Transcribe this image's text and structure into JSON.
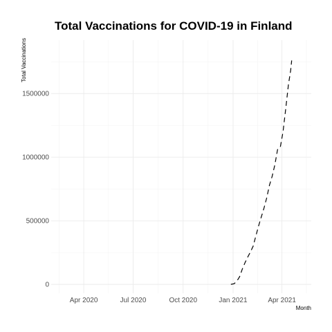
{
  "chart_data": {
    "type": "line",
    "title": "Total Vaccinations for COVID-19 in Finland",
    "xlabel": "Month",
    "ylabel": "Total Vaccinations",
    "xlim": [
      "2020-02-01",
      "2021-05-25"
    ],
    "ylim": [
      -70000,
      1920000
    ],
    "x_ticks": [
      {
        "date": "2020-04-01",
        "label": "Apr 2020"
      },
      {
        "date": "2020-07-01",
        "label": "Jul 2020"
      },
      {
        "date": "2020-10-01",
        "label": "Oct 2020"
      },
      {
        "date": "2021-01-01",
        "label": "Jan 2021"
      },
      {
        "date": "2021-04-01",
        "label": "Apr 2021"
      }
    ],
    "y_ticks": [
      {
        "value": 0,
        "label": "0"
      },
      {
        "value": 500000,
        "label": "500000"
      },
      {
        "value": 1000000,
        "label": "1000000"
      },
      {
        "value": 1500000,
        "label": "1500000"
      }
    ],
    "grid": true,
    "series": [
      {
        "color": "#000000",
        "points": [
          {
            "x": "2020-12-28",
            "y": 0
          },
          {
            "x": "2021-01-03",
            "y": 5000
          },
          {
            "x": "2021-01-08",
            "y": 25000
          },
          {
            "x": "2021-01-13",
            "y": 60000
          },
          {
            "x": "2021-01-18",
            "y": 120000
          },
          {
            "x": "2021-01-23",
            "y": 170000
          },
          {
            "x": "2021-01-28",
            "y": 215000
          },
          {
            "x": "2021-02-02",
            "y": 255000
          },
          {
            "x": "2021-02-07",
            "y": 300000
          },
          {
            "x": "2021-02-12",
            "y": 380000
          },
          {
            "x": "2021-02-17",
            "y": 460000
          },
          {
            "x": "2021-02-22",
            "y": 530000
          },
          {
            "x": "2021-02-27",
            "y": 600000
          },
          {
            "x": "2021-03-04",
            "y": 680000
          },
          {
            "x": "2021-03-09",
            "y": 780000
          },
          {
            "x": "2021-03-14",
            "y": 850000
          },
          {
            "x": "2021-03-19",
            "y": 940000
          },
          {
            "x": "2021-03-24",
            "y": 1060000
          },
          {
            "x": "2021-03-29",
            "y": 1080000
          },
          {
            "x": "2021-04-03",
            "y": 1200000
          },
          {
            "x": "2021-04-08",
            "y": 1380000
          },
          {
            "x": "2021-04-13",
            "y": 1570000
          },
          {
            "x": "2021-04-17",
            "y": 1680000
          },
          {
            "x": "2021-04-19",
            "y": 1760000
          }
        ]
      }
    ]
  }
}
